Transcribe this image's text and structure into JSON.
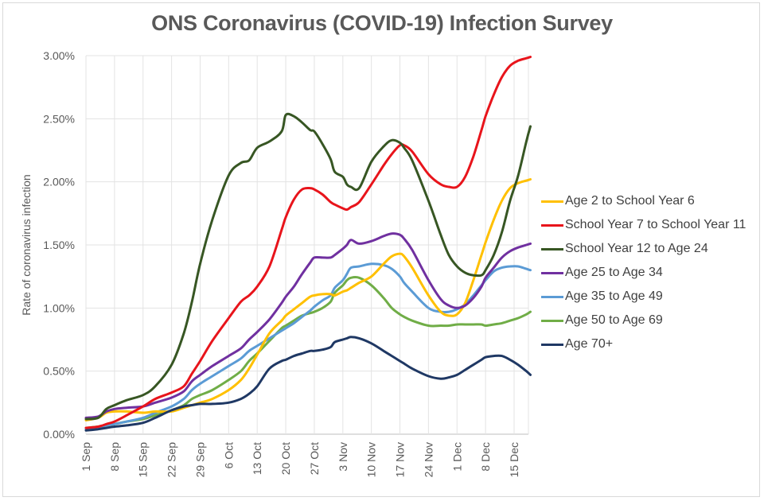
{
  "chart_data": {
    "type": "line",
    "title": "ONS Coronavirus (COVID-19) Infection Survey",
    "xlabel": "",
    "ylabel": "Rate of coronavirus infection",
    "ylim": [
      0,
      3.0
    ],
    "y_ticks": [
      "0.00%",
      "0.50%",
      "1.00%",
      "1.50%",
      "2.00%",
      "2.50%",
      "3.00%"
    ],
    "y_tick_values": [
      0,
      0.5,
      1.0,
      1.5,
      2.0,
      2.5,
      3.0
    ],
    "x_unit": "days since 1 Sep",
    "xlim": [
      0,
      109
    ],
    "x_ticks": [
      "1 Sep",
      "8 Sep",
      "15 Sep",
      "22 Sep",
      "29 Sep",
      "6 Oct",
      "13 Oct",
      "20 Oct",
      "27 Oct",
      "3 Nov",
      "10 Nov",
      "17 Nov",
      "24 Nov",
      "1 Dec",
      "8 Dec",
      "15 Dec"
    ],
    "x_tick_values": [
      0,
      7,
      14,
      21,
      28,
      35,
      42,
      49,
      56,
      63,
      70,
      77,
      84,
      91,
      98,
      105
    ],
    "grid": true,
    "legend_position": "right",
    "x": [
      0,
      3,
      5,
      7,
      10,
      14,
      17,
      21,
      24,
      26,
      28,
      31,
      35,
      38,
      40,
      42,
      45,
      48,
      49,
      51,
      53,
      55,
      56,
      58,
      60,
      61,
      63,
      64,
      65,
      67,
      70,
      73,
      75,
      77,
      78,
      80,
      84,
      87,
      89,
      91,
      93,
      95,
      97,
      98,
      100,
      102,
      104,
      106,
      108,
      109
    ],
    "series": [
      {
        "name": "Age 2 to School Year 6",
        "color": "#FFC000",
        "values": [
          0.11,
          0.13,
          0.17,
          0.18,
          0.18,
          0.17,
          0.18,
          0.18,
          0.21,
          0.23,
          0.25,
          0.28,
          0.35,
          0.43,
          0.52,
          0.63,
          0.8,
          0.9,
          0.94,
          0.99,
          1.04,
          1.09,
          1.1,
          1.11,
          1.11,
          1.1,
          1.13,
          1.14,
          1.16,
          1.2,
          1.25,
          1.35,
          1.41,
          1.43,
          1.41,
          1.32,
          1.1,
          0.97,
          0.94,
          0.95,
          1.04,
          1.22,
          1.42,
          1.52,
          1.7,
          1.85,
          1.95,
          1.99,
          2.01,
          2.02
        ]
      },
      {
        "name": "School Year 7 to School Year 11",
        "color": "#E8141B",
        "values": [
          0.05,
          0.06,
          0.08,
          0.1,
          0.15,
          0.22,
          0.28,
          0.33,
          0.38,
          0.48,
          0.58,
          0.74,
          0.92,
          1.05,
          1.1,
          1.17,
          1.33,
          1.62,
          1.72,
          1.86,
          1.94,
          1.95,
          1.94,
          1.9,
          1.84,
          1.82,
          1.79,
          1.78,
          1.8,
          1.84,
          1.98,
          2.13,
          2.22,
          2.29,
          2.29,
          2.24,
          2.06,
          1.98,
          1.96,
          1.96,
          2.04,
          2.2,
          2.41,
          2.52,
          2.69,
          2.83,
          2.92,
          2.96,
          2.98,
          2.99
        ]
      },
      {
        "name": "School Year 12 to Age 24",
        "color": "#375623",
        "values": [
          0.12,
          0.13,
          0.2,
          0.23,
          0.27,
          0.31,
          0.38,
          0.55,
          0.8,
          1.05,
          1.35,
          1.7,
          2.05,
          2.15,
          2.17,
          2.27,
          2.32,
          2.4,
          2.53,
          2.52,
          2.47,
          2.41,
          2.4,
          2.3,
          2.18,
          2.08,
          2.04,
          1.98,
          1.96,
          1.95,
          2.16,
          2.28,
          2.33,
          2.31,
          2.27,
          2.17,
          1.85,
          1.58,
          1.42,
          1.33,
          1.28,
          1.26,
          1.26,
          1.3,
          1.42,
          1.6,
          1.85,
          2.05,
          2.32,
          2.44
        ]
      },
      {
        "name": "Age 25 to Age 34",
        "color": "#7030A0",
        "values": [
          0.13,
          0.14,
          0.18,
          0.2,
          0.21,
          0.22,
          0.25,
          0.29,
          0.34,
          0.42,
          0.47,
          0.54,
          0.62,
          0.68,
          0.75,
          0.81,
          0.91,
          1.04,
          1.09,
          1.17,
          1.27,
          1.36,
          1.4,
          1.4,
          1.4,
          1.42,
          1.47,
          1.5,
          1.54,
          1.51,
          1.53,
          1.57,
          1.59,
          1.58,
          1.55,
          1.46,
          1.22,
          1.07,
          1.02,
          1.0,
          1.02,
          1.08,
          1.17,
          1.24,
          1.32,
          1.4,
          1.45,
          1.48,
          1.5,
          1.51
        ]
      },
      {
        "name": "Age 35 to Age 49",
        "color": "#5B9BD5",
        "values": [
          0.04,
          0.05,
          0.07,
          0.08,
          0.1,
          0.13,
          0.17,
          0.22,
          0.28,
          0.35,
          0.4,
          0.46,
          0.54,
          0.6,
          0.66,
          0.7,
          0.76,
          0.82,
          0.84,
          0.88,
          0.93,
          0.98,
          1.01,
          1.06,
          1.1,
          1.16,
          1.22,
          1.27,
          1.32,
          1.33,
          1.35,
          1.34,
          1.31,
          1.25,
          1.2,
          1.13,
          1.0,
          0.97,
          0.97,
          0.99,
          1.03,
          1.1,
          1.18,
          1.22,
          1.29,
          1.32,
          1.33,
          1.33,
          1.31,
          1.3
        ]
      },
      {
        "name": "Age 50 to Age 69",
        "color": "#70AD47",
        "values": [
          0.05,
          0.06,
          0.07,
          0.08,
          0.1,
          0.12,
          0.15,
          0.19,
          0.23,
          0.28,
          0.31,
          0.35,
          0.43,
          0.5,
          0.58,
          0.64,
          0.74,
          0.84,
          0.86,
          0.9,
          0.94,
          0.96,
          0.97,
          1.0,
          1.05,
          1.12,
          1.18,
          1.22,
          1.24,
          1.24,
          1.18,
          1.08,
          1.0,
          0.95,
          0.93,
          0.9,
          0.86,
          0.86,
          0.86,
          0.87,
          0.87,
          0.87,
          0.87,
          0.86,
          0.87,
          0.88,
          0.9,
          0.92,
          0.95,
          0.97
        ]
      },
      {
        "name": "Age 70+",
        "color": "#1F3864",
        "values": [
          0.03,
          0.04,
          0.05,
          0.06,
          0.07,
          0.09,
          0.13,
          0.19,
          0.22,
          0.23,
          0.24,
          0.24,
          0.25,
          0.28,
          0.32,
          0.38,
          0.52,
          0.58,
          0.59,
          0.62,
          0.64,
          0.66,
          0.66,
          0.67,
          0.69,
          0.73,
          0.75,
          0.76,
          0.77,
          0.76,
          0.72,
          0.66,
          0.62,
          0.58,
          0.56,
          0.52,
          0.46,
          0.44,
          0.45,
          0.47,
          0.51,
          0.55,
          0.59,
          0.61,
          0.62,
          0.62,
          0.59,
          0.55,
          0.5,
          0.47
        ]
      }
    ]
  }
}
